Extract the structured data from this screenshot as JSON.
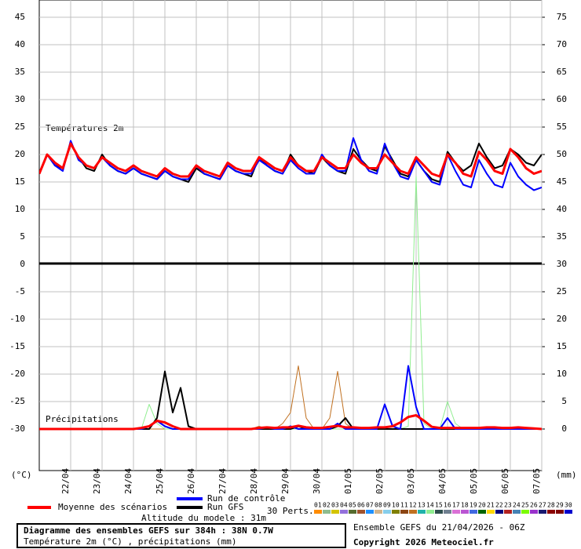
{
  "chart_data": {
    "type": "line",
    "x": [
      0,
      6,
      12,
      18,
      24,
      30,
      36,
      42,
      48,
      54,
      60,
      66,
      72,
      78,
      84,
      90,
      96,
      102,
      108,
      114,
      120,
      126,
      132,
      138,
      144,
      150,
      156,
      162,
      168,
      174,
      180,
      186,
      192,
      198,
      204,
      210,
      216,
      222,
      228,
      234,
      240,
      246,
      252,
      258,
      264,
      270,
      276,
      282,
      288,
      294,
      300,
      306,
      312,
      318,
      324,
      330,
      336,
      342,
      348,
      354,
      360,
      366,
      372,
      378,
      384
    ],
    "xlim": [
      0,
      384
    ],
    "xticks": [
      {
        "value": 24,
        "label": "22/04"
      },
      {
        "value": 48,
        "label": "23/04"
      },
      {
        "value": 72,
        "label": "24/04"
      },
      {
        "value": 96,
        "label": "25/04"
      },
      {
        "value": 120,
        "label": "26/04"
      },
      {
        "value": 144,
        "label": "27/04"
      },
      {
        "value": 168,
        "label": "28/04"
      },
      {
        "value": 192,
        "label": "29/04"
      },
      {
        "value": 216,
        "label": "30/04"
      },
      {
        "value": 240,
        "label": "01/05"
      },
      {
        "value": 264,
        "label": "02/05"
      },
      {
        "value": 288,
        "label": "03/05"
      },
      {
        "value": 312,
        "label": "04/05"
      },
      {
        "value": 336,
        "label": "05/05"
      },
      {
        "value": 360,
        "label": "06/05"
      },
      {
        "value": 384,
        "label": "07/05"
      }
    ],
    "ylim": [
      -37.57,
      48.14
    ],
    "yticks": [
      -30,
      -25,
      -20,
      -15,
      -10,
      -5,
      0,
      5,
      10,
      15,
      20,
      25,
      30,
      35,
      40,
      45
    ],
    "y2lim": [
      -7.57,
      78.14
    ],
    "y2ticks": [
      0,
      5,
      10,
      15,
      20,
      25,
      30,
      35,
      40,
      45,
      50,
      55,
      60,
      65,
      70,
      75
    ],
    "y_label": "(°C)",
    "y2_label": "(mm)",
    "annotations": [
      "Températures 2m",
      "Précipitations"
    ],
    "grid": true,
    "series": [
      {
        "name": "Moyenne des scénarios",
        "color": "#ff0000",
        "values": [
          16.5,
          20,
          18.5,
          17.5,
          22,
          19.5,
          18,
          17.5,
          19.5,
          18.5,
          17.5,
          17,
          18,
          17,
          16.5,
          16,
          17.5,
          16.5,
          16,
          16,
          18,
          17,
          16.5,
          16,
          18.5,
          17.5,
          17,
          17,
          19.5,
          18.5,
          17.5,
          17,
          19.5,
          18,
          17,
          17,
          19.5,
          18.5,
          17.5,
          17.5,
          20,
          18.5,
          17.5,
          17.5,
          20,
          18.5,
          17,
          16.5,
          19.5,
          18,
          16.5,
          16,
          20,
          18.5,
          16.5,
          16,
          20.5,
          19,
          17,
          16.5,
          21,
          19.5,
          17.5,
          16.5,
          17
        ],
        "precip": [
          0,
          0,
          0,
          0,
          0,
          0,
          0,
          0,
          0,
          0,
          0,
          0,
          0,
          0.2,
          0.5,
          1.5,
          1.2,
          0.5,
          0,
          0,
          0,
          0,
          0,
          0,
          0,
          0,
          0,
          0,
          0.2,
          0.3,
          0.2,
          0.3,
          0.3,
          0.6,
          0.3,
          0.2,
          0.2,
          0.4,
          0.6,
          0.3,
          0.3,
          0.2,
          0.2,
          0.3,
          0.3,
          0.5,
          1.2,
          2.2,
          2.5,
          1.5,
          0.4,
          0.2,
          0.2,
          0.2,
          0.2,
          0.2,
          0.2,
          0.3,
          0.3,
          0.2,
          0.2,
          0.3,
          0.2,
          0.1,
          0
        ]
      },
      {
        "name": "Run de contrôle",
        "color": "#0000ff",
        "values": [
          16.5,
          20,
          18,
          17,
          22.5,
          19,
          18,
          17.5,
          19.5,
          18,
          17,
          16.5,
          17.5,
          16.5,
          16,
          15.5,
          17,
          16,
          15.5,
          15.5,
          18,
          16.5,
          16,
          15.5,
          18,
          17,
          16.5,
          16.5,
          19,
          18,
          17,
          16.5,
          19,
          17.5,
          16.5,
          16.5,
          20,
          18,
          17,
          17,
          23,
          19,
          17,
          16.5,
          22,
          18.5,
          16,
          15.5,
          19,
          17,
          15,
          14.5,
          20,
          17,
          14.5,
          14,
          19,
          16.5,
          14.5,
          14,
          18.5,
          16,
          14.5,
          13.5,
          14
        ],
        "precip": [
          0,
          0,
          0,
          0,
          0,
          0,
          0,
          0,
          0,
          0,
          0,
          0,
          0,
          0,
          0.5,
          1.5,
          0.5,
          0,
          0,
          0,
          0,
          0,
          0,
          0,
          0,
          0,
          0,
          0,
          0,
          0.3,
          0,
          0,
          0.5,
          0,
          0,
          0,
          0,
          0,
          1,
          0,
          0,
          0,
          0,
          0,
          4.5,
          0.5,
          0,
          11.5,
          4,
          0,
          0,
          0,
          2,
          0,
          0,
          0,
          0,
          0,
          0,
          0,
          0,
          0,
          0,
          0,
          0
        ]
      },
      {
        "name": "Run GFS",
        "color": "#000000",
        "values": [
          16.5,
          20,
          18,
          17.5,
          22,
          19.5,
          17.5,
          17,
          20,
          18,
          17,
          16.5,
          17.5,
          16.5,
          16,
          15.5,
          17,
          16,
          15.5,
          15,
          17.5,
          16.5,
          16,
          15.5,
          18,
          17,
          16.5,
          16,
          19.5,
          18,
          17,
          16.5,
          20,
          18,
          17,
          16.5,
          19.5,
          18,
          17,
          16.5,
          21,
          19,
          17.5,
          17,
          21.5,
          19,
          16.5,
          16,
          19,
          17,
          15.5,
          15,
          20.5,
          18.5,
          17,
          18,
          22,
          19.5,
          17.5,
          18,
          21,
          20,
          18.5,
          18,
          20
        ],
        "precip": [
          0,
          0,
          0,
          0,
          0,
          0,
          0,
          0,
          0,
          0,
          0,
          0,
          0,
          0,
          0,
          2,
          10.5,
          3,
          7.5,
          0.5,
          0,
          0,
          0,
          0,
          0,
          0,
          0,
          0,
          0,
          0,
          0,
          0,
          0,
          0.5,
          0,
          0,
          0,
          0,
          0.5,
          2,
          0,
          0,
          0,
          0,
          0,
          0,
          0,
          0,
          0,
          0,
          0,
          0,
          0,
          0,
          0,
          0,
          0,
          0,
          0,
          0,
          0,
          0,
          0,
          0,
          0
        ]
      }
    ],
    "perturbations_label": "30 Perts.",
    "perturbations": [
      {
        "name": "01",
        "color": "#ff8c00"
      },
      {
        "name": "02",
        "color": "#8fbc8f"
      },
      {
        "name": "03",
        "color": "#d4c400"
      },
      {
        "name": "04",
        "color": "#9370db"
      },
      {
        "name": "05",
        "color": "#556b2f"
      },
      {
        "name": "06",
        "color": "#a0522d"
      },
      {
        "name": "07",
        "color": "#1e90ff"
      },
      {
        "name": "08",
        "color": "#d2b48c"
      },
      {
        "name": "09",
        "color": "#87ceeb"
      },
      {
        "name": "10",
        "color": "#808000"
      },
      {
        "name": "11",
        "color": "#8b4513"
      },
      {
        "name": "12",
        "color": "#c07020",
        "precip": [
          0,
          0,
          0,
          0,
          0,
          0,
          0,
          0,
          0,
          0,
          0,
          0,
          0,
          0,
          0,
          0,
          0,
          0,
          0,
          0,
          0,
          0,
          0,
          0,
          0,
          0,
          0,
          0,
          0.5,
          0,
          0,
          1,
          3,
          11.5,
          2,
          0,
          0,
          2,
          10.5,
          1,
          0,
          0,
          0,
          0,
          0,
          0,
          0,
          0,
          0,
          0,
          0,
          0,
          0,
          0,
          0,
          0,
          0,
          0,
          0,
          0,
          0,
          0,
          0,
          0,
          0
        ]
      },
      {
        "name": "13",
        "color": "#20b2aa"
      },
      {
        "name": "14",
        "color": "#90ee90",
        "precip": [
          0,
          0,
          0,
          0,
          0,
          0,
          0,
          0,
          0,
          0,
          0,
          0,
          0,
          0,
          4.5,
          1,
          0,
          0,
          0,
          0,
          0,
          0,
          0,
          0,
          0,
          0,
          0,
          0,
          0,
          0,
          0,
          0,
          0,
          0,
          0,
          0,
          0,
          0,
          0,
          0,
          0,
          0,
          0,
          0,
          0,
          0,
          0,
          0.5,
          46,
          1,
          0,
          0,
          5,
          1,
          0,
          0,
          0,
          0,
          0,
          0,
          0,
          0,
          0,
          0,
          0
        ]
      },
      {
        "name": "15",
        "color": "#2f4f4f"
      },
      {
        "name": "16",
        "color": "#708090"
      },
      {
        "name": "17",
        "color": "#da70d6"
      },
      {
        "name": "18",
        "color": "#ba55d3"
      },
      {
        "name": "19",
        "color": "#4169e1"
      },
      {
        "name": "20",
        "color": "#006400"
      },
      {
        "name": "21",
        "color": "#ffd700"
      },
      {
        "name": "22",
        "color": "#000080"
      },
      {
        "name": "23",
        "color": "#b22222"
      },
      {
        "name": "24",
        "color": "#4682b4"
      },
      {
        "name": "25",
        "color": "#7cfc00"
      },
      {
        "name": "26",
        "color": "#9932cc"
      },
      {
        "name": "27",
        "color": "#191970"
      },
      {
        "name": "28",
        "color": "#8b0000"
      },
      {
        "name": "29",
        "color": "#800000"
      },
      {
        "name": "30",
        "color": "#0000cd"
      }
    ],
    "altitude": "Altitude du modele : 31m"
  },
  "footer": {
    "title": "Diagramme des ensembles GEFS sur 384h : 38N 0.7W",
    "subtitle": "Température 2m (°C) , précipitations (mm)",
    "run": "Ensemble GEFS du 21/04/2026 - 06Z",
    "copyright": "Copyright 2026 Meteociel.fr"
  }
}
